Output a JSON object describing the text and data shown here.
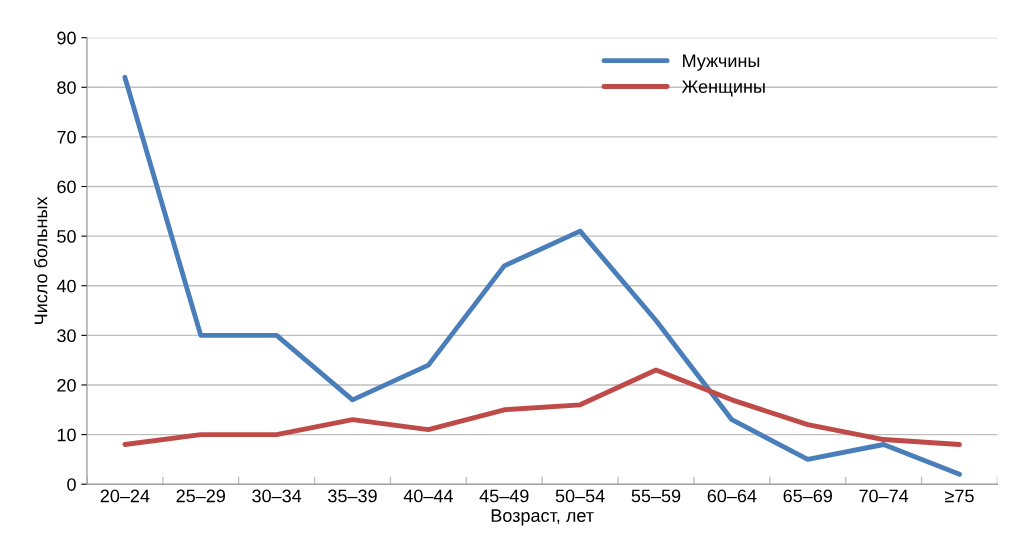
{
  "chart_data": {
    "type": "line",
    "xlabel": "Возраст, лет",
    "ylabel": "Число больных",
    "categories": [
      "20–24",
      "25–29",
      "30–34",
      "35–39",
      "40–44",
      "45–49",
      "50–54",
      "55–59",
      "60–64",
      "65–69",
      "70–74",
      "≥75"
    ],
    "series": [
      {
        "name": "Мужчины",
        "color": "#4a7ebb",
        "values": [
          82,
          30,
          30,
          17,
          24,
          44,
          51,
          33,
          13,
          5,
          8,
          2
        ]
      },
      {
        "name": "Женщины",
        "color": "#be4b48",
        "values": [
          8,
          10,
          10,
          13,
          11,
          15,
          16,
          23,
          17,
          12,
          9,
          8
        ]
      }
    ],
    "ylim": [
      0,
      90
    ],
    "yticks": [
      0,
      10,
      20,
      30,
      40,
      50,
      60,
      70,
      80,
      90
    ],
    "grid": true,
    "legend": "top",
    "marker": "none",
    "line_style": "solid"
  }
}
